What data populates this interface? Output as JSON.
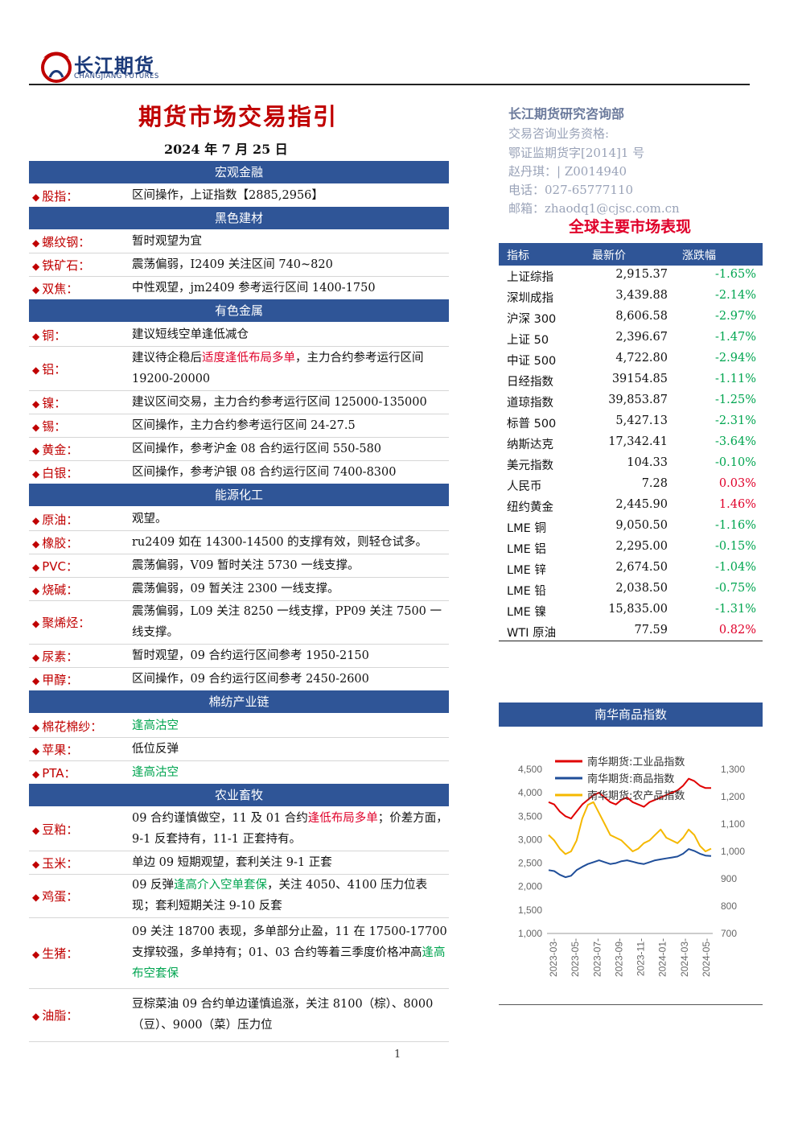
{
  "header": {
    "brand_cn": "长江期货",
    "brand_en": "CHANGJIANG FUTURES",
    "title": "期货市场交易指引",
    "date": "2024 年 7 月 25 日"
  },
  "sections": [
    {
      "title": "宏观金融",
      "rows": [
        {
          "label": "股指：",
          "text": [
            {
              "t": "区间操作，上证指数【2885,2956】"
            }
          ]
        }
      ]
    },
    {
      "title": "黑色建材",
      "rows": [
        {
          "label": "螺纹钢：",
          "text": [
            {
              "t": "暂时观望为宜"
            }
          ]
        },
        {
          "label": "铁矿石：",
          "text": [
            {
              "t": "震荡偏弱，I2409 关注区间 740~820"
            }
          ]
        },
        {
          "label": "双焦：",
          "text": [
            {
              "t": "中性观望，jm2409 参考运行区间 1400-1750"
            }
          ]
        }
      ]
    },
    {
      "title": "有色金属",
      "rows": [
        {
          "label": "铜：",
          "text": [
            {
              "t": "建议短线空单逢低减仓"
            }
          ]
        },
        {
          "label": "铝：",
          "text": [
            {
              "t": "建议待企稳后"
            },
            {
              "t": "适度逢低布局多单",
              "c": "red"
            },
            {
              "t": "，主力合约参考运行区间 19200-20000"
            }
          ]
        },
        {
          "label": "镍：",
          "text": [
            {
              "t": "建议区间交易，主力合约参考运行区间 125000-135000"
            }
          ]
        },
        {
          "label": "锡：",
          "text": [
            {
              "t": "区间操作，主力合约参考运行区间 24-27.5"
            }
          ]
        },
        {
          "label": "黄金：",
          "text": [
            {
              "t": "区间操作，参考沪金 08 合约运行区间 550-580"
            }
          ]
        },
        {
          "label": "白银：",
          "text": [
            {
              "t": "区间操作，参考沪银 08 合约运行区间 7400-8300"
            }
          ]
        }
      ]
    },
    {
      "title": "能源化工",
      "rows": [
        {
          "label": "原油：",
          "text": [
            {
              "t": "观望。"
            }
          ]
        },
        {
          "label": "橡胶：",
          "text": [
            {
              "t": "ru2409 如在 14300-14500 的支撑有效，则轻仓试多。"
            }
          ]
        },
        {
          "label": "PVC：",
          "text": [
            {
              "t": "震荡偏弱，V09 暂时关注 5730 一线支撑。"
            }
          ]
        },
        {
          "label": "烧碱：",
          "text": [
            {
              "t": "震荡偏弱，09 暂关注 2300 一线支撑。"
            }
          ]
        },
        {
          "label": "聚烯烃：",
          "text": [
            {
              "t": "震荡偏弱，L09 关注 8250 一线支撑，PP09 关注 7500 一线支撑。"
            }
          ]
        },
        {
          "label": "尿素：",
          "text": [
            {
              "t": "暂时观望，09 合约运行区间参考 1950-2150"
            }
          ]
        },
        {
          "label": "甲醇：",
          "text": [
            {
              "t": "区间操作，09 合约运行区间参考 2450-2600"
            }
          ]
        }
      ]
    },
    {
      "title": "棉纺产业链",
      "rows": [
        {
          "label": "棉花棉纱：",
          "text": [
            {
              "t": "逢高沽空",
              "c": "grn"
            }
          ]
        },
        {
          "label": "苹果：",
          "text": [
            {
              "t": "低位反弹"
            }
          ]
        },
        {
          "label": "PTA：",
          "text": [
            {
              "t": "逢高沽空",
              "c": "grn"
            }
          ]
        }
      ]
    },
    {
      "title": "农业畜牧",
      "rows": [
        {
          "label": "豆粕：",
          "text": [
            {
              "t": "09 合约谨慎做空，11 及 01 合约"
            },
            {
              "t": "逢低布局多单",
              "c": "red"
            },
            {
              "t": "；价差方面，9-1 反套持有，11-1 正套持有。"
            }
          ]
        },
        {
          "label": "玉米：",
          "text": [
            {
              "t": "单边 09 短期观望，套利关注 9-1 正套"
            }
          ]
        },
        {
          "label": "鸡蛋：",
          "text": [
            {
              "t": "09 反弹"
            },
            {
              "t": "逢高介入空单套保",
              "c": "grn"
            },
            {
              "t": "，关注 4050、4100 压力位表现；套利短期关注 9-10 反套"
            }
          ]
        },
        {
          "label": "生猪：",
          "text": [
            {
              "t": "09 关注 18700 表现，多单部分止盈，11 在 17500-17700 支撑较强，多单持有；01、03 合约等着三季度价格冲高"
            },
            {
              "t": "逢高布空套保",
              "c": "grn"
            }
          ]
        },
        {
          "label": "油脂：",
          "text": [
            {
              "t": "豆棕菜油 09 合约单边谨慎追涨，关注 8100（棕）、8000（豆）、9000（菜）压力位"
            }
          ]
        }
      ]
    }
  ],
  "contact": {
    "dept": "长江期货研究咨询部",
    "qualification": "交易咨询业务资格:",
    "license": "鄂证监期货字[2014]1 号",
    "analyst": "赵丹琪：| Z0014940",
    "phone": "电话：027-65777110",
    "email": "邮箱：zhaodq1@cjsc.com.cn"
  },
  "market": {
    "title": "全球主要市场表现",
    "headers": [
      "指标",
      "最新价",
      "涨跌幅"
    ],
    "rows": [
      {
        "name": "上证综指",
        "price": "2,915.37",
        "change": "-1.65%",
        "dir": "neg"
      },
      {
        "name": "深圳成指",
        "price": "3,439.88",
        "change": "-2.14%",
        "dir": "neg"
      },
      {
        "name": "沪深 300",
        "price": "8,606.58",
        "change": "-2.97%",
        "dir": "neg"
      },
      {
        "name": "上证 50",
        "price": "2,396.67",
        "change": "-1.47%",
        "dir": "neg"
      },
      {
        "name": "中证 500",
        "price": "4,722.80",
        "change": "-2.94%",
        "dir": "neg"
      },
      {
        "name": "日经指数",
        "price": "39154.85",
        "change": "-1.11%",
        "dir": "neg"
      },
      {
        "name": "道琼指数",
        "price": "39,853.87",
        "change": "-1.25%",
        "dir": "neg"
      },
      {
        "name": "标普 500",
        "price": "5,427.13",
        "change": "-2.31%",
        "dir": "neg"
      },
      {
        "name": "纳斯达克",
        "price": "17,342.41",
        "change": "-3.64%",
        "dir": "neg"
      },
      {
        "name": "美元指数",
        "price": "104.33",
        "change": "-0.10%",
        "dir": "neg"
      },
      {
        "name": "人民币",
        "price": "7.28",
        "change": "0.03%",
        "dir": "pos"
      },
      {
        "name": "纽约黄金",
        "price": "2,445.90",
        "change": "1.46%",
        "dir": "pos"
      },
      {
        "name": "LME 铜",
        "price": "9,050.50",
        "change": "-1.16%",
        "dir": "neg"
      },
      {
        "name": "LME 铝",
        "price": "2,295.00",
        "change": "-0.15%",
        "dir": "neg"
      },
      {
        "name": "LME 锌",
        "price": "2,674.50",
        "change": "-1.04%",
        "dir": "neg"
      },
      {
        "name": "LME 铅",
        "price": "2,038.50",
        "change": "-0.75%",
        "dir": "neg"
      },
      {
        "name": "LME 镍",
        "price": "15,835.00",
        "change": "-1.31%",
        "dir": "neg"
      },
      {
        "name": "WTI 原油",
        "price": "77.59",
        "change": "0.82%",
        "dir": "pos"
      }
    ]
  },
  "chart_data": {
    "type": "line",
    "title": "南华商品指数",
    "y_left": {
      "ticks": [
        "1,000",
        "1,500",
        "2,000",
        "2,500",
        "3,000",
        "3,500",
        "4,000",
        "4,500"
      ],
      "range": [
        1000,
        4500
      ]
    },
    "y_right": {
      "ticks": [
        "700",
        "800",
        "900",
        "1,000",
        "1,100",
        "1,200",
        "1,300"
      ],
      "range": [
        700,
        1300
      ]
    },
    "x_ticks": [
      "2023-03-",
      "2023-05-",
      "2023-07-",
      "2023-09-",
      "2023-11-",
      "2024-01-",
      "2024-03-",
      "2024-05-"
    ],
    "series": [
      {
        "name": "南华期货:工业品指数",
        "color": "#e00000",
        "axis": "left",
        "values": [
          3800,
          3750,
          3600,
          3500,
          3450,
          3600,
          3750,
          3850,
          3950,
          4000,
          3900,
          3800,
          3750,
          3850,
          3900,
          3800,
          3750,
          3700,
          3800,
          3850,
          3900,
          3950,
          4000,
          4050,
          4150,
          4300,
          4250,
          4150,
          4100,
          4100
        ]
      },
      {
        "name": "南华期货:商品指数",
        "color": "#1f4e99",
        "axis": "left",
        "values": [
          2350,
          2330,
          2250,
          2200,
          2230,
          2350,
          2420,
          2480,
          2520,
          2560,
          2520,
          2480,
          2500,
          2540,
          2560,
          2530,
          2500,
          2480,
          2520,
          2560,
          2580,
          2600,
          2620,
          2640,
          2700,
          2800,
          2760,
          2700,
          2660,
          2650
        ]
      },
      {
        "name": "南华期货:农产品指数",
        "color": "#f5b800",
        "axis": "right",
        "values": [
          1060,
          1040,
          1010,
          990,
          1000,
          1040,
          1120,
          1170,
          1180,
          1140,
          1100,
          1060,
          1050,
          1040,
          1020,
          1000,
          1010,
          1030,
          1040,
          1060,
          1080,
          1050,
          1040,
          1030,
          1050,
          1080,
          1060,
          1020,
          1000,
          1010
        ]
      }
    ]
  },
  "page_number": "1"
}
